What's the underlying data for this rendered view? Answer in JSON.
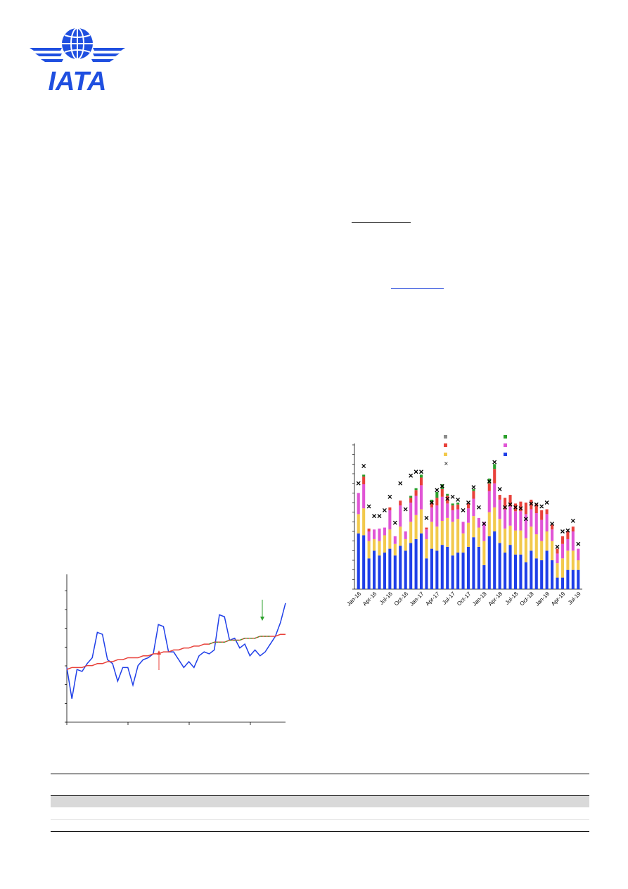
{
  "logo": {
    "text": "IATA",
    "globe_color": "#1f4fe0",
    "wing_color": "#1f4fe0"
  },
  "colors": {
    "blue": "#1f3fe8",
    "red": "#e8413a",
    "green_arrow": "#2ca02c",
    "yellow": "#f2c94c",
    "magenta": "#e055d5",
    "grey": "#8c8c8c",
    "green": "#2ca02c",
    "table_band": "#d9d9d9"
  },
  "chart_data": [
    {
      "type": "line",
      "series": [
        {
          "values": [
            28,
            12,
            27,
            26,
            30,
            33,
            46,
            45,
            32,
            30,
            21,
            28,
            28,
            19,
            29,
            32,
            33,
            35,
            50,
            49,
            36,
            36,
            32,
            28,
            31,
            28,
            34,
            36,
            35,
            37,
            55,
            54,
            42,
            43,
            38,
            40,
            34,
            37,
            34,
            36,
            40,
            44,
            51,
            61
          ]
        },
        {
          "values": [
            27,
            28,
            28,
            28,
            29,
            29,
            30,
            30,
            31,
            31,
            32,
            32,
            33,
            33,
            33,
            34,
            34,
            35,
            35,
            36,
            36,
            37,
            37,
            38,
            38,
            39,
            39,
            40,
            40,
            41,
            41,
            41,
            42,
            42,
            42,
            43,
            43,
            43,
            44,
            44,
            44,
            44,
            45,
            45
          ]
        }
      ]
    },
    {
      "type": "bar",
      "categories": [
        "Jan-16",
        "Apr-16",
        "Jul-16",
        "Oct-16",
        "Jan-17",
        "Apr-17",
        "Jul-17",
        "Oct-17",
        "Jan-18",
        "Apr-18",
        "Jul-18",
        "Oct-18",
        "Jan-19",
        "Apr-19",
        "Jul-19"
      ],
      "stacks": [
        [
          58,
          20,
          22,
          0,
          0
        ],
        [
          56,
          28,
          25,
          8,
          2
        ],
        [
          32,
          18,
          10,
          3,
          0
        ],
        [
          40,
          12,
          10,
          0,
          0
        ],
        [
          35,
          15,
          13,
          0,
          0
        ],
        [
          38,
          18,
          8,
          0,
          0
        ],
        [
          42,
          20,
          20,
          3,
          0
        ],
        [
          35,
          12,
          8,
          0,
          0
        ],
        [
          45,
          20,
          22,
          5,
          0
        ],
        [
          40,
          12,
          8,
          0,
          0
        ],
        [
          48,
          22,
          20,
          5,
          2
        ],
        [
          52,
          25,
          20,
          6,
          2
        ],
        [
          58,
          25,
          25,
          8,
          3
        ],
        [
          32,
          20,
          10,
          2,
          0
        ],
        [
          42,
          28,
          15,
          5,
          3
        ],
        [
          40,
          25,
          22,
          8,
          6
        ],
        [
          46,
          25,
          25,
          8,
          5
        ],
        [
          44,
          30,
          15,
          8,
          2
        ],
        [
          35,
          35,
          12,
          5,
          2
        ],
        [
          38,
          35,
          10,
          5,
          2
        ],
        [
          38,
          20,
          12,
          0,
          0
        ],
        [
          44,
          25,
          15,
          5,
          0
        ],
        [
          54,
          22,
          18,
          8,
          2
        ],
        [
          44,
          20,
          10,
          0,
          0
        ],
        [
          25,
          25,
          20,
          0,
          0
        ],
        [
          55,
          25,
          22,
          8,
          5
        ],
        [
          60,
          25,
          25,
          15,
          5
        ],
        [
          48,
          25,
          20,
          5,
          0
        ],
        [
          38,
          25,
          20,
          12,
          0
        ],
        [
          46,
          20,
          20,
          12,
          0
        ],
        [
          36,
          25,
          20,
          8,
          0
        ],
        [
          36,
          25,
          20,
          10,
          0
        ],
        [
          28,
          25,
          25,
          12,
          0
        ],
        [
          40,
          25,
          18,
          10,
          0
        ],
        [
          32,
          25,
          22,
          10,
          0
        ],
        [
          30,
          20,
          22,
          10,
          0
        ],
        [
          40,
          20,
          18,
          5,
          0
        ],
        [
          30,
          20,
          12,
          5,
          0
        ],
        [
          12,
          15,
          10,
          5,
          0
        ],
        [
          12,
          20,
          15,
          8,
          0
        ],
        [
          20,
          20,
          12,
          8,
          0
        ],
        [
          20,
          20,
          20,
          5,
          0
        ],
        [
          20,
          10,
          12,
          0,
          0
        ]
      ],
      "totals": [
        110,
        128,
        86,
        76,
        76,
        82,
        96,
        69,
        110,
        83,
        118,
        122,
        122,
        74,
        90,
        103,
        107,
        94,
        96,
        93,
        82,
        90,
        106,
        85,
        68,
        112,
        132,
        104,
        85,
        88,
        85,
        84,
        73,
        89,
        88,
        86,
        90,
        68,
        44,
        60,
        61,
        71,
        47
      ]
    }
  ],
  "left_chart": {
    "green_arrow_label": "",
    "red_arrow_label": ""
  },
  "table": {
    "rows": 3
  }
}
